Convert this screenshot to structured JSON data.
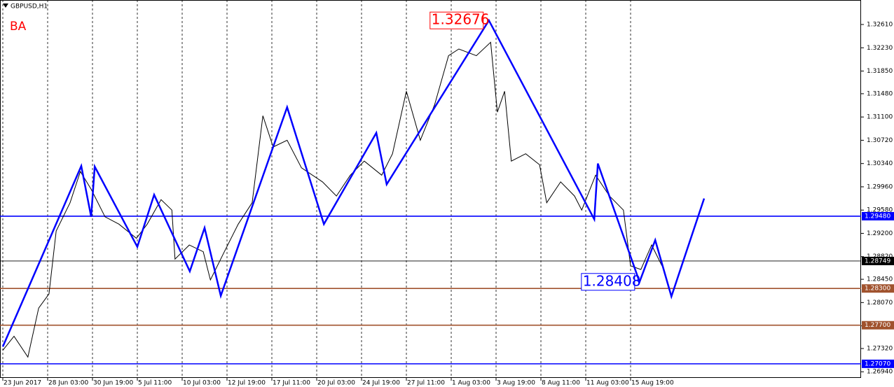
{
  "chart_data": {
    "type": "line",
    "title": "GBPUSD,H1",
    "annotation": "BA",
    "peak_label": 1.32676,
    "trough_label": 1.28408,
    "categories": [
      "23 Jun 2017",
      "28 Jun 03:00",
      "30 Jun 19:00",
      "5 Jul 11:00",
      "10 Jul 03:00",
      "12 Jul 19:00",
      "17 Jul 11:00",
      "20 Jul 03:00",
      "24 Jul 19:00",
      "27 Jul 11:00",
      "1 Aug 03:00",
      "3 Aug 19:00",
      "8 Aug 11:00",
      "11 Aug 03:00",
      "15 Aug 19:00"
    ],
    "xlim": [
      -0.0625,
      19.14
    ],
    "ylim": [
      1.2684,
      1.3301
    ],
    "yticks": [
      {
        "value": 1.3261,
        "label": "1.32610"
      },
      {
        "value": 1.3223,
        "label": "1.32230"
      },
      {
        "value": 1.3185,
        "label": "1.31850"
      },
      {
        "value": 1.3148,
        "label": "1.31480"
      },
      {
        "value": 1.311,
        "label": "1.31100"
      },
      {
        "value": 1.3072,
        "label": "1.30720"
      },
      {
        "value": 1.3034,
        "label": "1.30340"
      },
      {
        "value": 1.2996,
        "label": "1.29960"
      },
      {
        "value": 1.2958,
        "label": "1.29580"
      },
      {
        "value": 1.292,
        "label": "1.29200"
      },
      {
        "value": 1.2882,
        "label": "1.28820"
      },
      {
        "value": 1.2845,
        "label": "1.28450"
      },
      {
        "value": 1.2807,
        "label": "1.28070"
      },
      {
        "value": 1.2769,
        "label": "1.27690"
      },
      {
        "value": 1.2732,
        "label": "1.27320"
      },
      {
        "value": 1.2694,
        "label": "1.26940"
      }
    ],
    "levels": [
      {
        "value": 1.2948,
        "label": "1.29480",
        "color": "#0000ff"
      },
      {
        "value": 1.28749,
        "label": "1.28749",
        "color": "#000000"
      },
      {
        "value": 1.283,
        "label": "1.28300",
        "color": "#a0522d"
      },
      {
        "value": 1.277,
        "label": "1.27700",
        "color": "#a0522d"
      },
      {
        "value": 1.2707,
        "label": "1.27070",
        "color": "#0000ff"
      }
    ],
    "series": [
      {
        "color": "#000000",
        "x": [
          0,
          0.25,
          0.56,
          0.8,
          1.03,
          1.19,
          1.5,
          1.73,
          1.97,
          2.28,
          2.59,
          2.98,
          3.22,
          3.53,
          3.77,
          3.84,
          4.16,
          4.47,
          4.63,
          4.94,
          5.25,
          5.56,
          5.8,
          6.03,
          6.34,
          6.66,
          7.13,
          7.44,
          7.75,
          8.06,
          8.45,
          8.69,
          9.0,
          9.31,
          9.63,
          9.94,
          10.17,
          10.56,
          10.88,
          11.03,
          11.19,
          11.34,
          11.66,
          11.97,
          12.13,
          12.44,
          12.75,
          12.91,
          13.22,
          13.53,
          13.84,
          14.0,
          14.23,
          14.47,
          14.7
        ],
        "values": [
          1.2729,
          1.2752,
          1.2718,
          1.2798,
          1.2821,
          1.2924,
          1.297,
          1.3021,
          1.2992,
          1.2947,
          1.2935,
          1.2912,
          1.2935,
          1.2975,
          1.2958,
          1.2878,
          1.2901,
          1.289,
          1.2844,
          1.289,
          1.2935,
          1.297,
          1.3112,
          1.3061,
          1.3072,
          1.3027,
          1.3004,
          1.2981,
          1.3015,
          1.3038,
          1.3015,
          1.305,
          1.3152,
          1.3072,
          1.313,
          1.321,
          1.3221,
          1.321,
          1.3232,
          1.3118,
          1.3152,
          1.3038,
          1.305,
          1.3032,
          1.297,
          1.3004,
          1.2981,
          1.2958,
          1.3015,
          1.2981,
          1.2958,
          1.2867,
          1.2861,
          1.2901,
          1.2867
        ]
      },
      {
        "color": "#0000ff",
        "x": [
          0,
          1.75,
          1.97,
          2.05,
          3.0,
          3.375,
          4.17,
          4.5,
          4.86,
          6.34,
          7.16,
          8.33,
          8.56,
          10.84,
          13.19,
          13.27,
          14.2,
          14.55,
          14.91,
          15.64
        ],
        "values": [
          1.2735,
          1.303,
          1.2947,
          1.3029,
          1.2898,
          1.2983,
          1.2858,
          1.2929,
          1.2818,
          1.3126,
          1.2935,
          1.3084,
          1.3,
          1.32676,
          1.2943,
          1.3034,
          1.28408,
          1.2909,
          1.2817,
          1.2977
        ]
      }
    ]
  }
}
